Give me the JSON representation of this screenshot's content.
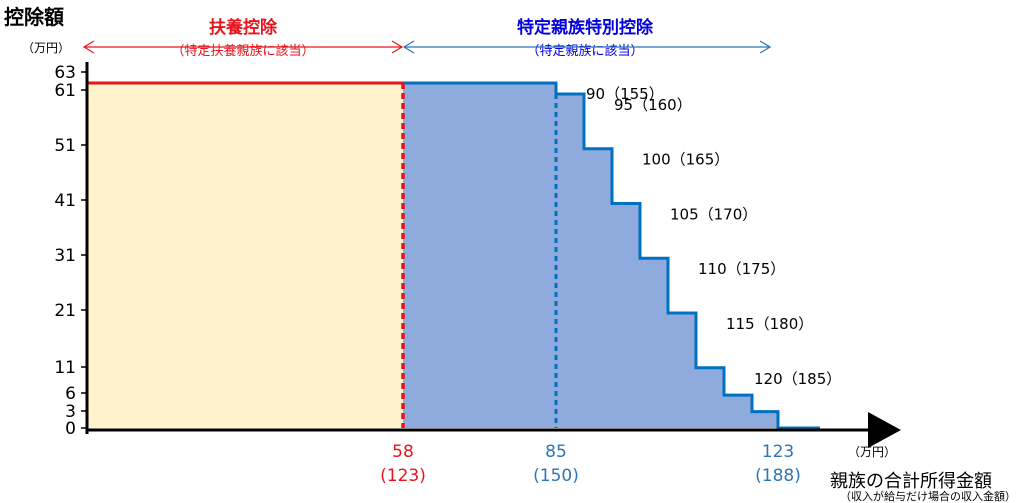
{
  "chart_data": {
    "type": "area",
    "y_axis": {
      "title": "控除額",
      "unit": "（万円）",
      "ticks": [
        0,
        3,
        6,
        11,
        21,
        31,
        41,
        51,
        61,
        63
      ]
    },
    "x_axis": {
      "title": "親族の合計所得金額",
      "subtitle": "（収入が給与だけ場合の収入金額）",
      "unit": "（万円）",
      "markers": [
        {
          "value": "58",
          "sub": "(123)",
          "color": "#e8141c"
        },
        {
          "value": "85",
          "sub": "(150)",
          "color": "#2e75b6"
        },
        {
          "value": "123",
          "sub": "(188)",
          "color": "#2e75b6"
        }
      ]
    },
    "regions": [
      {
        "name": "扶養控除",
        "note": "（特定扶養親族に該当）",
        "color": "#e8141c",
        "fill": "#fff2cc",
        "from": 0,
        "to": 58
      },
      {
        "name": "特定親族特別控除",
        "note": "（特定親族に該当）",
        "color": "#0000e0",
        "fill": "#8faadc",
        "from": 58,
        "to": 123
      }
    ],
    "steps": [
      {
        "from": 0,
        "to": 85,
        "y": 63
      },
      {
        "from": 85,
        "to": 90,
        "y": 61
      },
      {
        "from": 90,
        "to": 95,
        "y": 51
      },
      {
        "from": 95,
        "to": 100,
        "y": 41
      },
      {
        "from": 100,
        "to": 105,
        "y": 31
      },
      {
        "from": 105,
        "to": 110,
        "y": 21
      },
      {
        "from": 110,
        "to": 115,
        "y": 11
      },
      {
        "from": 115,
        "to": 120,
        "y": 6
      },
      {
        "from": 120,
        "to": 123,
        "y": 3
      },
      {
        "from": 123,
        "to": 130,
        "y": 0
      }
    ],
    "step_labels": [
      {
        "x": 85,
        "y": 63,
        "text": "90（155）"
      },
      {
        "x": 90,
        "y": 61,
        "text": "95（160）"
      },
      {
        "x": 95,
        "y": 51,
        "text": "100（165）"
      },
      {
        "x": 100,
        "y": 41,
        "text": "105（170）"
      },
      {
        "x": 105,
        "y": 31,
        "text": "110（175）"
      },
      {
        "x": 110,
        "y": 21,
        "text": "115（180）"
      },
      {
        "x": 115,
        "y": 11,
        "text": "120（185）"
      }
    ]
  }
}
